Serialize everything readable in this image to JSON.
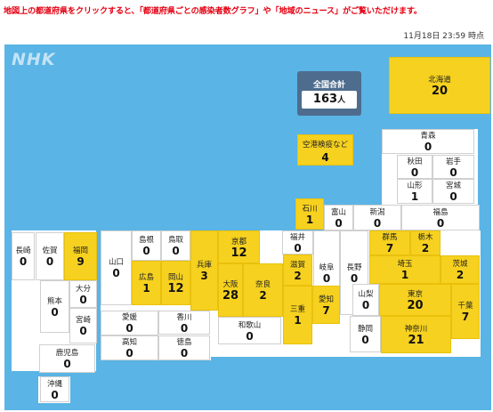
{
  "notice": "地図上の都道府県をクリックすると、「都道府県ごとの感染者数グラフ」や「地域のニュース」がご覧いただけます。",
  "timestamp": "11月18日 23:59 時点",
  "logo": "NHK",
  "total": {
    "label": "全国合計",
    "value": "163",
    "unit": "人"
  },
  "quarantine": {
    "label": "空港検疫など",
    "count": "4"
  },
  "colors": {
    "map_bg": "#5ab4e5",
    "highlight": "#f6d11f",
    "total_bg": "#4e6d8e"
  },
  "prefs": {
    "hokkaido": {
      "name": "北海道",
      "count": "20"
    },
    "aomori": {
      "name": "青森",
      "count": "0"
    },
    "akita": {
      "name": "秋田",
      "count": "0"
    },
    "iwate": {
      "name": "岩手",
      "count": "0"
    },
    "yamagata": {
      "name": "山形",
      "count": "1"
    },
    "miyagi": {
      "name": "宮城",
      "count": "0"
    },
    "ishikawa": {
      "name": "石川",
      "count": "1"
    },
    "toyama": {
      "name": "富山",
      "count": "0"
    },
    "niigata": {
      "name": "新潟",
      "count": "0"
    },
    "fukushima": {
      "name": "福島",
      "count": "0"
    },
    "nagasaki": {
      "name": "長崎",
      "count": "0"
    },
    "saga": {
      "name": "佐賀",
      "count": "0"
    },
    "fukuoka": {
      "name": "福岡",
      "count": "9"
    },
    "yamaguchi": {
      "name": "山口",
      "count": "0"
    },
    "shimane": {
      "name": "島根",
      "count": "0"
    },
    "tottori": {
      "name": "鳥取",
      "count": "0"
    },
    "hiroshima": {
      "name": "広島",
      "count": "1"
    },
    "okayama": {
      "name": "岡山",
      "count": "12"
    },
    "hyogo": {
      "name": "兵庫",
      "count": "3"
    },
    "kyoto": {
      "name": "京都",
      "count": "12"
    },
    "fukui": {
      "name": "福井",
      "count": "0"
    },
    "gifu": {
      "name": "岐阜",
      "count": "0"
    },
    "nagano": {
      "name": "長野",
      "count": "0"
    },
    "gunma": {
      "name": "群馬",
      "count": "7"
    },
    "tochigi": {
      "name": "栃木",
      "count": "2"
    },
    "osaka": {
      "name": "大阪",
      "count": "28"
    },
    "shiga": {
      "name": "滋賀",
      "count": "2"
    },
    "nara": {
      "name": "奈良",
      "count": "2"
    },
    "saitama": {
      "name": "埼玉",
      "count": "1"
    },
    "ibaraki": {
      "name": "茨城",
      "count": "2"
    },
    "kumamoto": {
      "name": "熊本",
      "count": "0"
    },
    "oita": {
      "name": "大分",
      "count": "0"
    },
    "miyazaki": {
      "name": "宮崎",
      "count": "0"
    },
    "ehime": {
      "name": "愛媛",
      "count": "0"
    },
    "kagawa": {
      "name": "香川",
      "count": "0"
    },
    "kochi": {
      "name": "高知",
      "count": "0"
    },
    "tokushima": {
      "name": "徳島",
      "count": "0"
    },
    "wakayama": {
      "name": "和歌山",
      "count": "0"
    },
    "mie": {
      "name": "三重",
      "count": "1"
    },
    "aichi": {
      "name": "愛知",
      "count": "7"
    },
    "yamanashi": {
      "name": "山梨",
      "count": "0"
    },
    "tokyo": {
      "name": "東京",
      "count": "20"
    },
    "chiba": {
      "name": "千葉",
      "count": "7"
    },
    "shizuoka": {
      "name": "静岡",
      "count": "0"
    },
    "kanagawa": {
      "name": "神奈川",
      "count": "21"
    },
    "kagoshima": {
      "name": "鹿児島",
      "count": "0"
    },
    "okinawa": {
      "name": "沖縄",
      "count": "0"
    }
  }
}
